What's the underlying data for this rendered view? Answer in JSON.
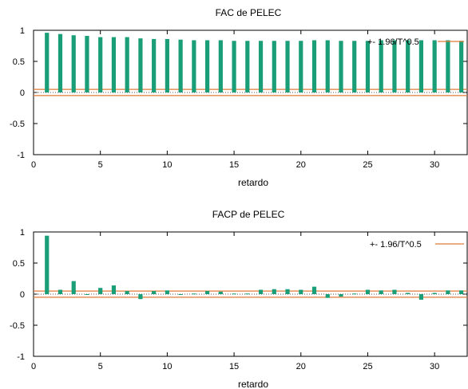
{
  "chart_data": [
    {
      "type": "bar",
      "title": "FAC de PELEC",
      "xlabel": "retardo",
      "ylabel": "",
      "xlim": [
        0,
        32.5
      ],
      "ylim": [
        -1,
        1
      ],
      "xticks": [
        0,
        5,
        10,
        15,
        20,
        25,
        30
      ],
      "yticks": [
        -1,
        -0.5,
        0,
        0.5,
        1
      ],
      "ytick_labels": [
        "-1",
        "-0.5",
        "0",
        "0.5",
        "1"
      ],
      "grid": false,
      "legend_position": "top-right",
      "legend_label": "+- 1.96/T^0.5",
      "band": 0.05,
      "bar_color": "#1a9e77",
      "band_color": "#e07b39",
      "lags": [
        1,
        2,
        3,
        4,
        5,
        6,
        7,
        8,
        9,
        10,
        11,
        12,
        13,
        14,
        15,
        16,
        17,
        18,
        19,
        20,
        21,
        22,
        23,
        24,
        25,
        26,
        27,
        28,
        29,
        30,
        31,
        32
      ],
      "values": [
        0.96,
        0.94,
        0.92,
        0.91,
        0.89,
        0.89,
        0.89,
        0.87,
        0.86,
        0.86,
        0.85,
        0.84,
        0.84,
        0.84,
        0.83,
        0.83,
        0.83,
        0.83,
        0.83,
        0.83,
        0.84,
        0.84,
        0.83,
        0.83,
        0.83,
        0.84,
        0.84,
        0.84,
        0.84,
        0.84,
        0.84,
        0.83
      ]
    },
    {
      "type": "bar",
      "title": "FACP de PELEC",
      "xlabel": "retardo",
      "ylabel": "",
      "xlim": [
        0,
        32.5
      ],
      "ylim": [
        -1,
        1
      ],
      "xticks": [
        0,
        5,
        10,
        15,
        20,
        25,
        30
      ],
      "yticks": [
        -1,
        -0.5,
        0,
        0.5,
        1
      ],
      "ytick_labels": [
        "-1",
        "-0.5",
        "0",
        "0.5",
        "1"
      ],
      "grid": false,
      "legend_position": "top-right",
      "legend_label": "+- 1.96/T^0.5",
      "band": 0.05,
      "bar_color": "#1a9e77",
      "band_color": "#e07b39",
      "lags": [
        1,
        2,
        3,
        4,
        5,
        6,
        7,
        8,
        9,
        10,
        11,
        12,
        13,
        14,
        15,
        16,
        17,
        18,
        19,
        20,
        21,
        22,
        23,
        24,
        25,
        26,
        27,
        28,
        29,
        30,
        31,
        32
      ],
      "values": [
        0.94,
        0.07,
        0.21,
        0.0,
        0.1,
        0.14,
        0.05,
        -0.08,
        0.05,
        0.06,
        0.0,
        0.01,
        0.05,
        0.04,
        0.01,
        0.01,
        0.07,
        0.08,
        0.08,
        0.07,
        0.12,
        -0.06,
        -0.04,
        0.01,
        0.07,
        0.06,
        0.07,
        0.02,
        -0.09,
        0.02,
        0.06,
        0.06
      ]
    }
  ]
}
